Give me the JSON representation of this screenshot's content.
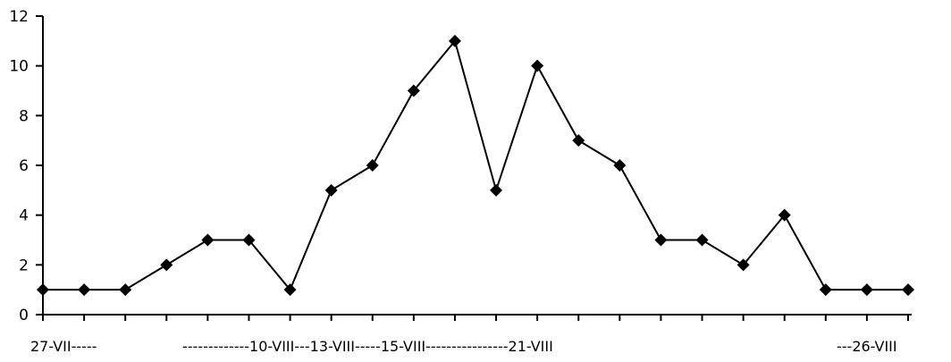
{
  "chart_data": {
    "type": "line",
    "title": "",
    "xlabel": "",
    "ylabel": "",
    "ylim": [
      0,
      12
    ],
    "yticks": [
      0,
      2,
      4,
      6,
      8,
      10,
      12
    ],
    "grid": false,
    "x_axis_text": [
      "27-VII-----",
      "-------------10-VIII---13-VIII-----15-VIII----------------21-VIII",
      "---26-VIII"
    ],
    "series": [
      {
        "values": [
          1,
          1,
          1,
          2,
          3,
          3,
          1,
          5,
          6,
          9,
          11,
          5,
          10,
          7,
          6,
          3,
          3,
          2,
          4,
          1,
          1,
          1
        ]
      }
    ]
  }
}
